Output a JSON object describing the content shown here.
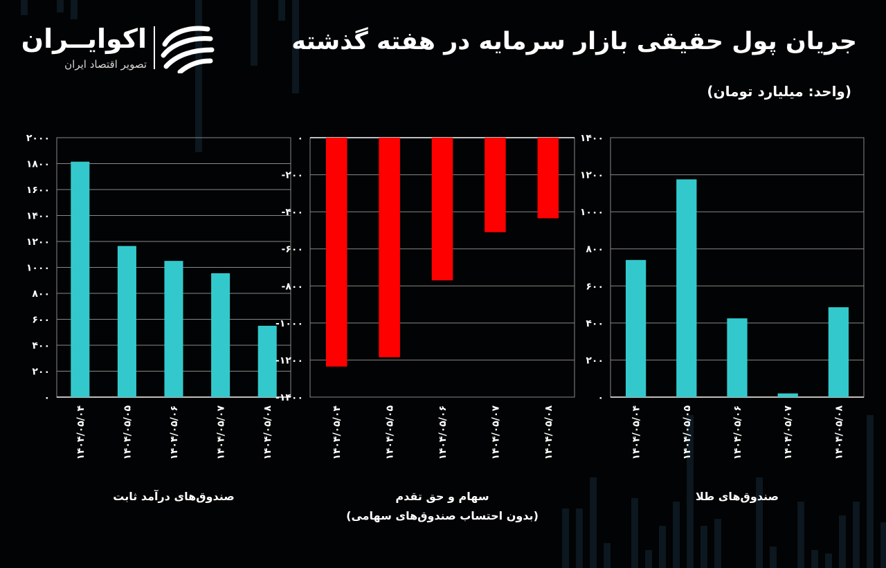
{
  "title": "جریان پول حقیقی بازار سرمایه در هفته گذشته",
  "unit": "(واحد: میلیارد تومان)",
  "logo": {
    "name": "اکوایــران",
    "subtitle": "تصویر اقتصاد ایران"
  },
  "colors": {
    "positive_bar": "#33c9cc",
    "negative_bar": "#ff0000",
    "grid": "#8a8a8a",
    "text": "#ffffff",
    "background": "#020304"
  },
  "chart_data": [
    {
      "type": "bar",
      "title": "صندوق‌های درآمد ثابت",
      "categories": [
        "۱۴۰۴/۰۵/۰۴",
        "۱۴۰۴/۰۵/۰۵",
        "۱۴۰۴/۰۵/۰۶",
        "۱۴۰۴/۰۵/۰۷",
        "۱۴۰۴/۰۵/۰۸"
      ],
      "values": [
        1815,
        1165,
        1050,
        955,
        550
      ],
      "ylim": [
        0,
        2000
      ],
      "yticks": [
        0,
        200,
        400,
        600,
        800,
        1000,
        1200,
        1400,
        1600,
        1800,
        2000
      ],
      "ytick_labels": [
        "۰",
        "۲۰۰",
        "۴۰۰",
        "۶۰۰",
        "۸۰۰",
        "۱۰۰۰",
        "۱۲۰۰",
        "۱۴۰۰",
        "۱۶۰۰",
        "۱۸۰۰",
        "۲۰۰۰"
      ],
      "caption": [
        "صندوق‌های درآمد ثابت"
      ],
      "grid": true
    },
    {
      "type": "bar",
      "title": "سهام و حق تقدم",
      "categories": [
        "۱۴۰۴/۰۵/۰۴",
        "۱۴۰۴/۰۵/۰۵",
        "۱۴۰۴/۰۵/۰۶",
        "۱۴۰۴/۰۵/۰۷",
        "۱۴۰۴/۰۵/۰۸"
      ],
      "values": [
        -1235,
        -1185,
        -770,
        -510,
        -435
      ],
      "ylim": [
        -1400,
        0
      ],
      "yticks": [
        0,
        -200,
        -400,
        -600,
        -800,
        -1000,
        -1200,
        -1400
      ],
      "ytick_labels": [
        "۰",
        "-۲۰۰",
        "-۴۰۰",
        "-۶۰۰",
        "-۸۰۰",
        "-۱۰۰۰",
        "-۱۲۰۰",
        "-۱۴۰۰"
      ],
      "caption": [
        "سهام و حق تقدم",
        "(بدون احتساب صندوق‌های سهامی)"
      ],
      "grid": true
    },
    {
      "type": "bar",
      "title": "صندوق‌های طلا",
      "categories": [
        "۱۴۰۴/۰۵/۰۴",
        "۱۴۰۴/۰۵/۰۵",
        "۱۴۰۴/۰۵/۰۶",
        "۱۴۰۴/۰۵/۰۷",
        "۱۴۰۴/۰۵/۰۸"
      ],
      "values": [
        740,
        1175,
        425,
        20,
        485
      ],
      "ylim": [
        0,
        1400
      ],
      "yticks": [
        0,
        200,
        400,
        600,
        800,
        1000,
        1200,
        1400
      ],
      "ytick_labels": [
        "۰",
        "۲۰۰",
        "۴۰۰",
        "۶۰۰",
        "۸۰۰",
        "۱۰۰۰",
        "۱۲۰۰",
        "۱۴۰۰"
      ],
      "caption": [
        "صندوق‌های طلا"
      ],
      "grid": true
    }
  ]
}
